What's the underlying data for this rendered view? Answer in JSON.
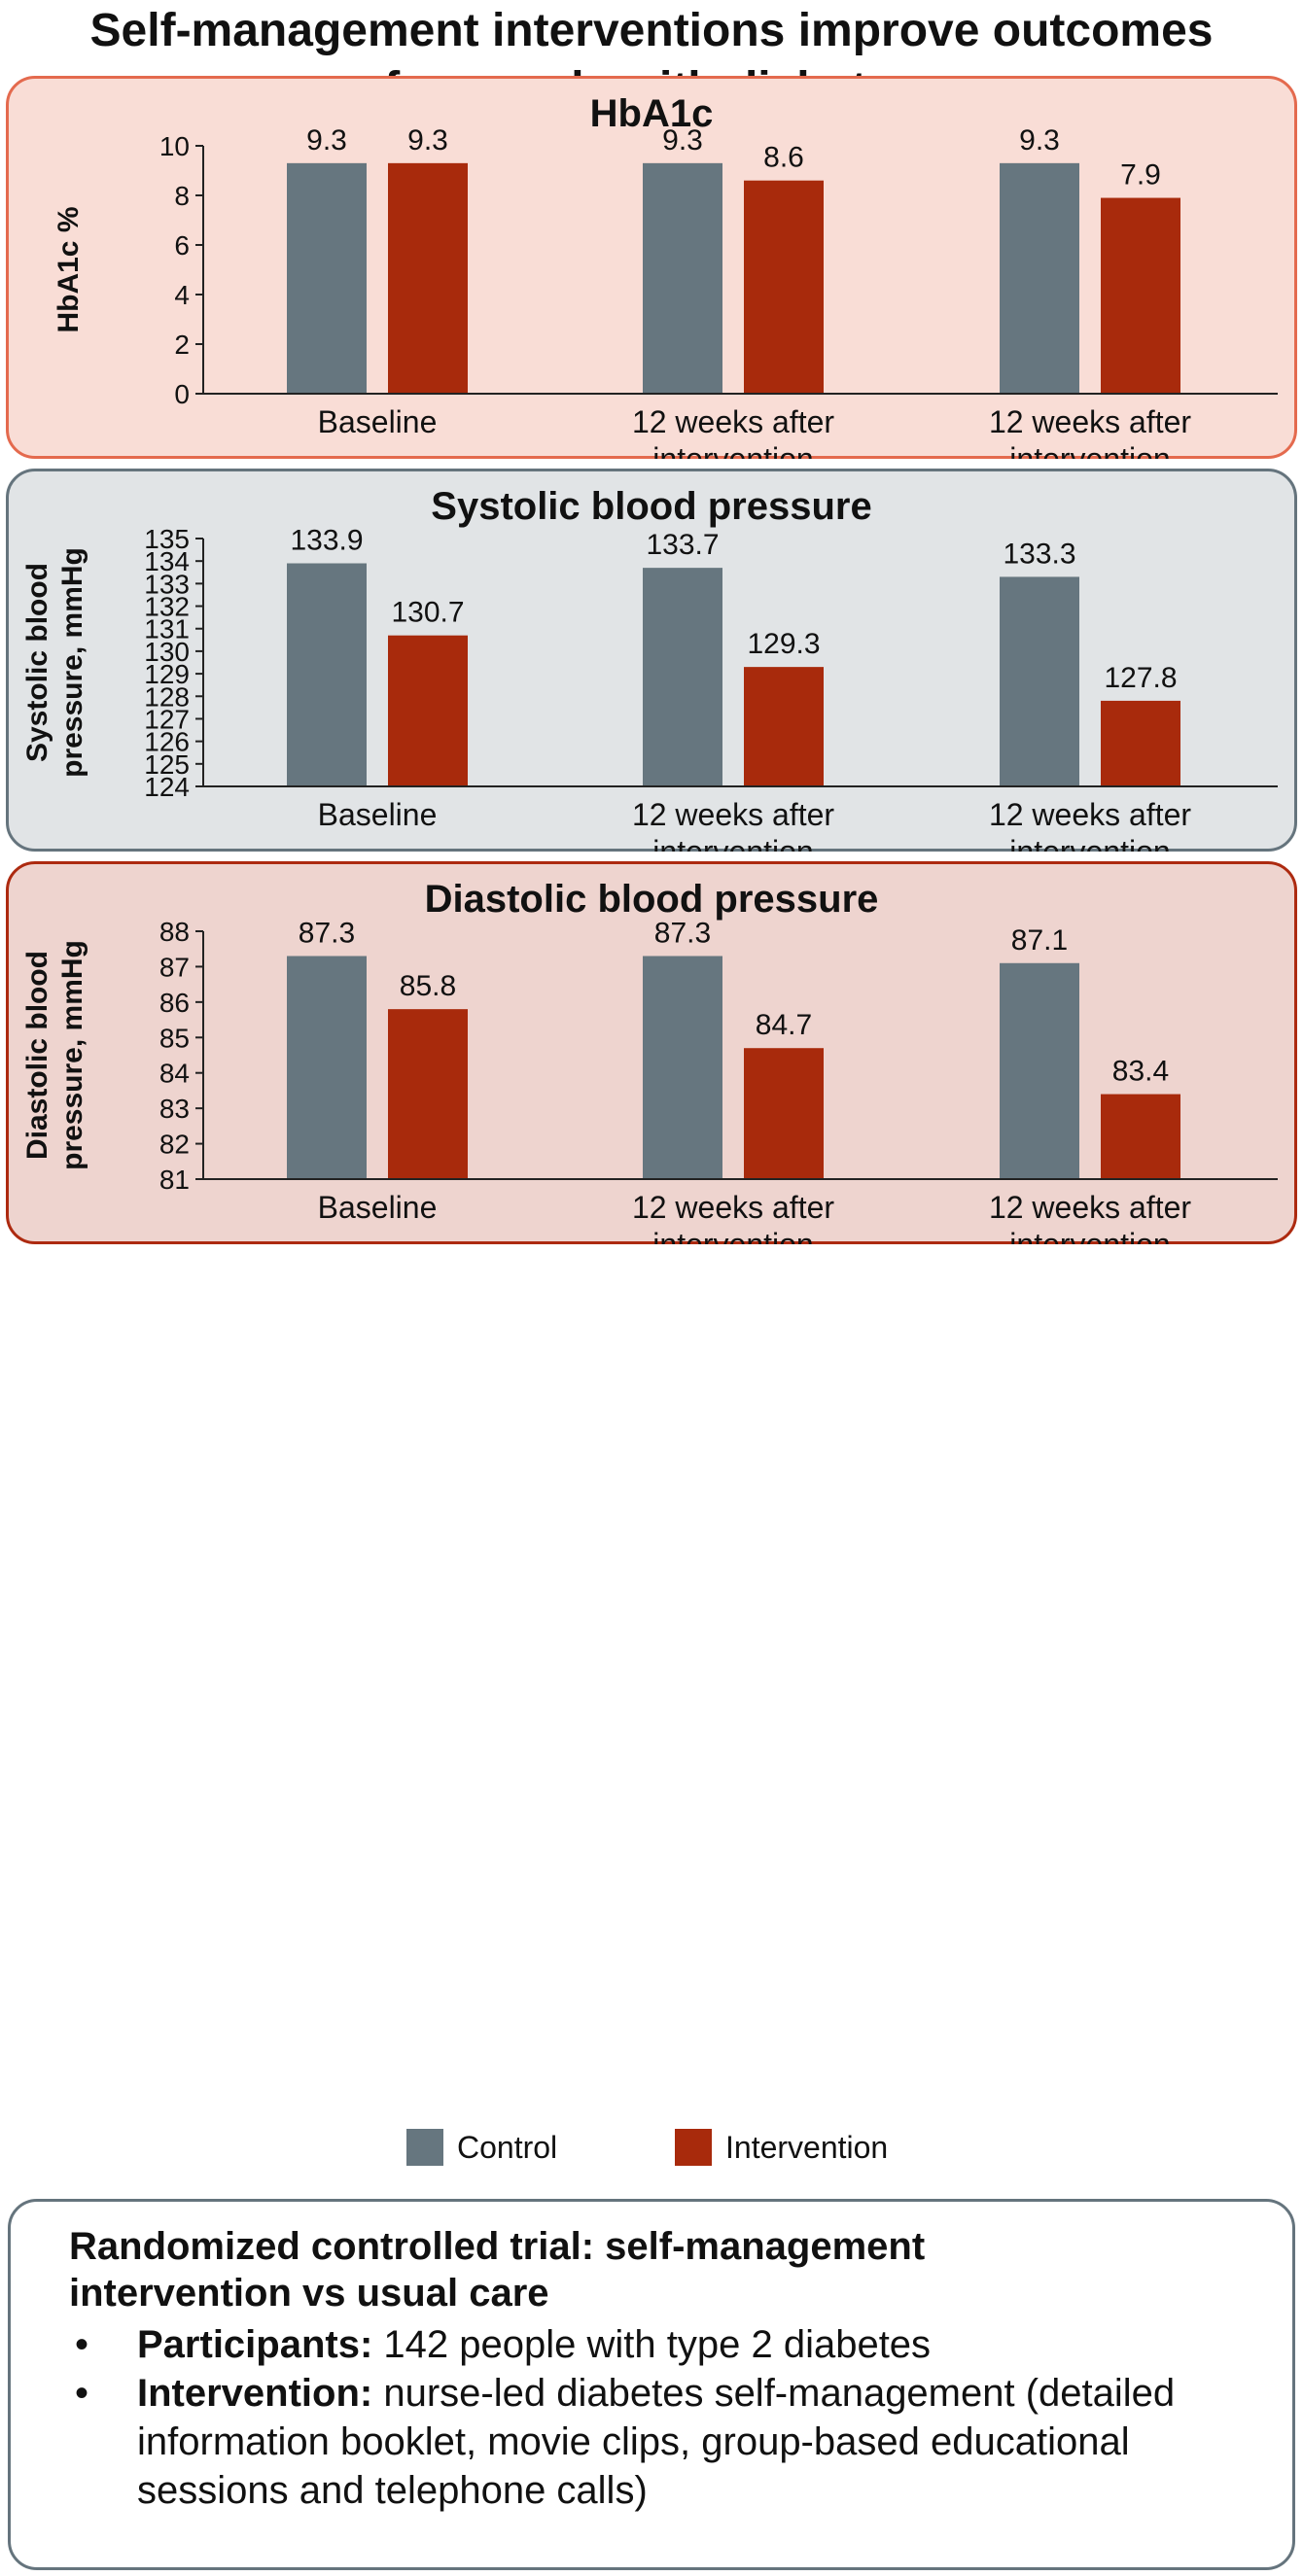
{
  "title_lines": [
    "Self-management interventions improve outcomes",
    "for people with diabetes"
  ],
  "colors": {
    "control": "#66767f",
    "intervention": "#a82a0c",
    "panel1_bg": "#f9ddd6",
    "panel1_border": "#e46a4e",
    "panel2_bg": "#e1e4e6",
    "panel2_border": "#65747d",
    "panel3_bg": "#eed4cf",
    "panel3_border": "#ad2a10"
  },
  "legend": {
    "control": "Control",
    "intervention": "Intervention"
  },
  "chart_data": [
    {
      "type": "bar",
      "title": "HbA1c",
      "ylabel": "HbA1c %",
      "ylabel_lines": [
        "HbA1c %"
      ],
      "categories": [
        [
          "Baseline"
        ],
        [
          "12 weeks after",
          "intervention"
        ],
        [
          "12 weeks after",
          "intervention"
        ]
      ],
      "ylim": [
        0,
        10
      ],
      "yticks": [
        0,
        2,
        4,
        6,
        8,
        10
      ],
      "series": [
        {
          "name": "Control",
          "values": [
            9.3,
            9.3,
            9.3
          ],
          "labels": [
            "9.3",
            "9.3",
            "9.3"
          ]
        },
        {
          "name": "Intervention",
          "values": [
            9.3,
            8.6,
            7.9
          ],
          "labels": [
            "9.3",
            "8.6",
            "7.9"
          ]
        }
      ]
    },
    {
      "type": "bar",
      "title": "Systolic blood pressure",
      "ylabel": "Systolic blood pressure, mmHg",
      "ylabel_lines": [
        "Systolic blood",
        "pressure, mmHg"
      ],
      "categories": [
        [
          "Baseline"
        ],
        [
          "12 weeks after",
          "intervention"
        ],
        [
          "12 weeks after",
          "intervention"
        ]
      ],
      "ylim": [
        124,
        135
      ],
      "yticks": [
        124,
        125,
        126,
        127,
        128,
        129,
        130,
        131,
        132,
        133,
        134,
        135
      ],
      "series": [
        {
          "name": "Control",
          "values": [
            133.9,
            133.7,
            133.3
          ],
          "labels": [
            "133.9",
            "133.7",
            "133.3"
          ]
        },
        {
          "name": "Intervention",
          "values": [
            130.7,
            129.3,
            127.8
          ],
          "labels": [
            "130.7",
            "129.3",
            "127.8"
          ]
        }
      ]
    },
    {
      "type": "bar",
      "title": "Diastolic blood pressure",
      "ylabel": "Diastolic blood pressure, mmHg",
      "ylabel_lines": [
        "Diastolic blood",
        "pressure, mmHg"
      ],
      "categories": [
        [
          "Baseline"
        ],
        [
          "12 weeks after",
          "intervention"
        ],
        [
          "12 weeks after",
          "intervention"
        ]
      ],
      "ylim": [
        81,
        88
      ],
      "yticks": [
        81,
        82,
        83,
        84,
        85,
        86,
        87,
        88
      ],
      "series": [
        {
          "name": "Control",
          "values": [
            87.3,
            87.3,
            87.1
          ],
          "labels": [
            "87.3",
            "87.3",
            "87.1"
          ]
        },
        {
          "name": "Intervention",
          "values": [
            85.8,
            84.7,
            83.4
          ],
          "labels": [
            "85.8",
            "84.7",
            "83.4"
          ]
        }
      ]
    }
  ],
  "info": {
    "heading_lines": [
      "Randomized controlled trial: self-management",
      "intervention vs usual care"
    ],
    "bullet_symbol": "•",
    "items": [
      {
        "label": "Participants:",
        "text": " 142 people with type 2 diabetes"
      },
      {
        "label": "Intervention:",
        "text": " nurse-led diabetes self-management (detailed information booklet, movie clips, group-based educational sessions and telephone calls)"
      }
    ]
  }
}
